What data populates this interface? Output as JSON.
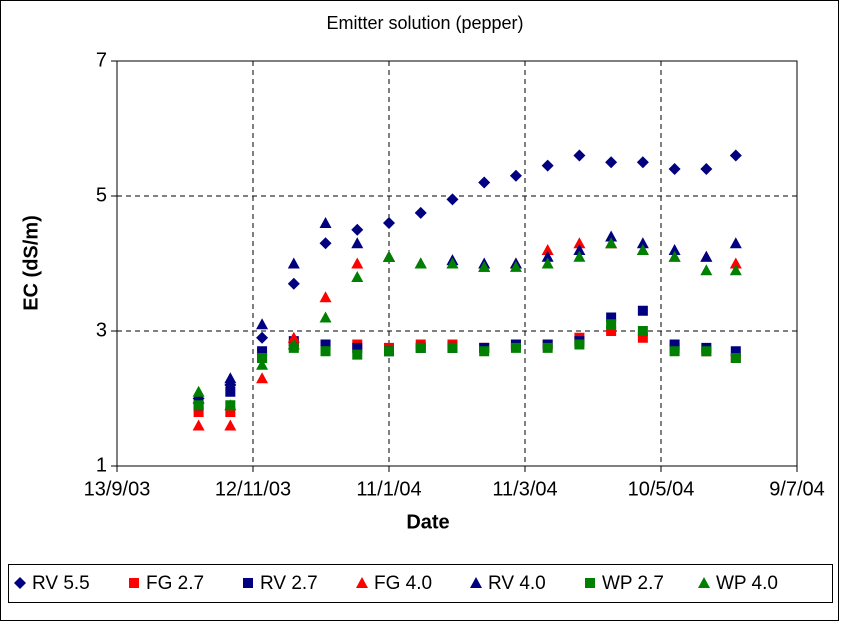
{
  "chart_data": {
    "type": "scatter",
    "title": "Emitter solution (pepper)",
    "x_label": "Date",
    "y_label": "EC (dS/m)",
    "xlim": [
      "2003-09-13",
      "2004-07-09"
    ],
    "xticks": [
      {
        "value": "2003-09-13",
        "label": "13/9/03"
      },
      {
        "value": "2003-11-12",
        "label": "12/11/03"
      },
      {
        "value": "2004-01-11",
        "label": "11/1/04"
      },
      {
        "value": "2004-03-11",
        "label": "11/3/04"
      },
      {
        "value": "2004-05-10",
        "label": "10/5/04"
      },
      {
        "value": "2004-07-09",
        "label": "9/7/04"
      }
    ],
    "ylim": [
      1,
      7
    ],
    "yticks": [
      1,
      3,
      5,
      7
    ],
    "grid": true,
    "x": [
      "2003-10-19",
      "2003-11-02",
      "2003-11-16",
      "2003-11-30",
      "2003-12-14",
      "2003-12-28",
      "2004-01-11",
      "2004-01-25",
      "2004-02-08",
      "2004-02-22",
      "2004-03-07",
      "2004-03-21",
      "2004-04-04",
      "2004-04-18",
      "2004-05-02",
      "2004-05-16",
      "2004-05-30",
      "2004-06-12"
    ],
    "series": [
      {
        "name": "RV 5.5",
        "color": "#000080",
        "marker": "diamond",
        "values": [
          2.0,
          2.2,
          2.9,
          3.7,
          4.3,
          4.5,
          4.6,
          4.75,
          4.95,
          5.2,
          5.3,
          5.45,
          5.6,
          5.5,
          5.5,
          5.4,
          5.4,
          5.6
        ]
      },
      {
        "name": "FG 2.7",
        "color": "#ff0000",
        "marker": "square",
        "values": [
          1.8,
          1.8,
          2.6,
          2.8,
          2.8,
          2.8,
          2.75,
          2.8,
          2.8,
          2.75,
          2.8,
          2.8,
          2.9,
          3.0,
          2.9,
          2.75,
          2.7,
          2.6
        ]
      },
      {
        "name": "RV 2.7",
        "color": "#000080",
        "marker": "square",
        "values": [
          1.9,
          2.1,
          2.7,
          2.85,
          2.8,
          2.75,
          2.7,
          2.75,
          2.75,
          2.75,
          2.8,
          2.8,
          2.85,
          3.2,
          3.3,
          2.8,
          2.75,
          2.7
        ]
      },
      {
        "name": "FG 4.0",
        "color": "#ff0000",
        "marker": "triangle",
        "values": [
          1.6,
          1.6,
          2.3,
          2.9,
          3.5,
          4.0,
          4.1,
          4.0,
          4.0,
          3.95,
          4.0,
          4.2,
          4.3,
          4.3,
          4.2,
          4.1,
          4.1,
          4.0
        ]
      },
      {
        "name": "RV 4.0",
        "color": "#000080",
        "marker": "triangle",
        "values": [
          2.0,
          2.3,
          3.1,
          4.0,
          4.6,
          4.3,
          4.1,
          4.0,
          4.05,
          4.0,
          4.0,
          4.1,
          4.2,
          4.4,
          4.3,
          4.2,
          4.1,
          4.3
        ]
      },
      {
        "name": "WP 2.7",
        "color": "#008000",
        "marker": "square",
        "values": [
          1.9,
          1.9,
          2.6,
          2.75,
          2.7,
          2.65,
          2.7,
          2.75,
          2.75,
          2.7,
          2.75,
          2.75,
          2.8,
          3.1,
          3.0,
          2.7,
          2.7,
          2.6
        ]
      },
      {
        "name": "WP 4.0",
        "color": "#008000",
        "marker": "triangle",
        "values": [
          2.1,
          1.9,
          2.5,
          2.8,
          3.2,
          3.8,
          4.1,
          4.0,
          4.0,
          3.95,
          3.95,
          4.0,
          4.1,
          4.3,
          4.2,
          4.1,
          3.9,
          3.9
        ]
      }
    ]
  }
}
